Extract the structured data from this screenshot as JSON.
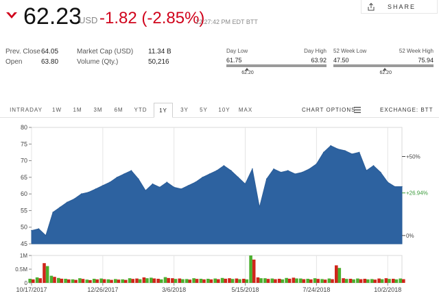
{
  "quote": {
    "price": "62.23",
    "currency": "USD",
    "change": "-1.82 (-2.85%)",
    "timestamp": "12:27:42 PM EDT BTT",
    "share_label": "SHARE",
    "down_color": "#d0021b"
  },
  "stats": {
    "prev_close_label": "Prev. Close",
    "prev_close": "64.05",
    "open_label": "Open",
    "open": "63.80",
    "market_cap_label": "Market Cap (USD)",
    "market_cap": "11.34 B",
    "volume_label": "Volume (Qty.)",
    "volume": "50,216"
  },
  "day_range": {
    "low_label": "Day Low",
    "high_label": "Day High",
    "low": "61.75",
    "high": "63.92",
    "current": "62.20"
  },
  "week52_range": {
    "low_label": "52 Week Low",
    "high_label": "52 Week High",
    "low": "47.50",
    "high": "75.94",
    "current": "62.20"
  },
  "tabs": [
    "INTRADAY",
    "1W",
    "1M",
    "3M",
    "6M",
    "YTD",
    "1Y",
    "3Y",
    "5Y",
    "10Y",
    "MAX"
  ],
  "active_tab": "1Y",
  "chart_options_label": "CHART OPTIONS",
  "exchange_label": "EXCHANGE: BTT",
  "chart_data": {
    "type": "area",
    "color": "#2d62a0",
    "x": [
      "10/17/2017",
      "10/24/2017",
      "10/31/2017",
      "11/7/2017",
      "11/14/2017",
      "11/21/2017",
      "11/28/2017",
      "12/5/2017",
      "12/12/2017",
      "12/19/2017",
      "12/26/2017",
      "1/2/2018",
      "1/9/2018",
      "1/16/2018",
      "1/23/2018",
      "1/30/2018",
      "2/6/2018",
      "2/13/2018",
      "2/20/2018",
      "2/27/2018",
      "3/6/2018",
      "3/13/2018",
      "3/20/2018",
      "3/27/2018",
      "4/3/2018",
      "4/10/2018",
      "4/17/2018",
      "4/24/2018",
      "5/1/2018",
      "5/8/2018",
      "5/15/2018",
      "5/22/2018",
      "5/29/2018",
      "6/5/2018",
      "6/12/2018",
      "6/19/2018",
      "6/26/2018",
      "7/3/2018",
      "7/10/2018",
      "7/17/2018",
      "7/24/2018",
      "7/31/2018",
      "8/7/2018",
      "8/14/2018",
      "8/21/2018",
      "8/28/2018",
      "9/4/2018",
      "9/11/2018",
      "9/18/2018",
      "9/25/2018",
      "10/2/2018",
      "10/9/2018",
      "10/16/2018"
    ],
    "y": [
      49.0,
      49.5,
      47.5,
      54.5,
      56.0,
      57.5,
      58.5,
      60.0,
      60.5,
      61.5,
      62.5,
      63.5,
      65.0,
      66.0,
      67.0,
      64.5,
      61.0,
      63.0,
      62.0,
      63.5,
      62.0,
      61.5,
      62.5,
      63.5,
      65.0,
      66.0,
      67.0,
      68.5,
      67.0,
      65.0,
      63.0,
      67.5,
      56.0,
      64.5,
      67.5,
      66.5,
      67.0,
      66.0,
      66.5,
      67.5,
      69.0,
      72.5,
      74.5,
      73.5,
      73.0,
      72.0,
      72.5,
      67.0,
      68.5,
      66.5,
      63.5,
      62.2,
      62.2
    ],
    "volume_k": [
      150,
      200,
      720,
      260,
      180,
      150,
      130,
      170,
      120,
      150,
      160,
      130,
      140,
      130,
      170,
      160,
      200,
      190,
      150,
      210,
      170,
      160,
      140,
      170,
      150,
      150,
      160,
      180,
      170,
      160,
      150,
      1000,
      200,
      170,
      160,
      150,
      180,
      190,
      160,
      150,
      170,
      140,
      160,
      640,
      170,
      150,
      160,
      150,
      140,
      160,
      170,
      150,
      160
    ],
    "ylim": [
      45,
      80
    ],
    "yticks": [
      45,
      50,
      55,
      60,
      65,
      70,
      75,
      80
    ],
    "volume_ylim": [
      0,
      1000
    ],
    "volume_ticks": [
      "0",
      "0.5M",
      "1M"
    ],
    "xtick_labels": [
      "10/17/2017",
      "12/26/2017",
      "3/6/2018",
      "5/15/2018",
      "7/24/2018",
      "10/2/2018"
    ],
    "xtick_index": [
      0,
      10,
      20,
      30,
      40,
      50
    ],
    "pct_labels": [
      {
        "label": "+50%",
        "value": 71.25,
        "color": "#444444"
      },
      {
        "label": "+26.94%",
        "value": 60.3,
        "color": "#3a9a3a"
      },
      {
        "label": "0%",
        "value": 47.5,
        "color": "#444444"
      }
    ]
  }
}
